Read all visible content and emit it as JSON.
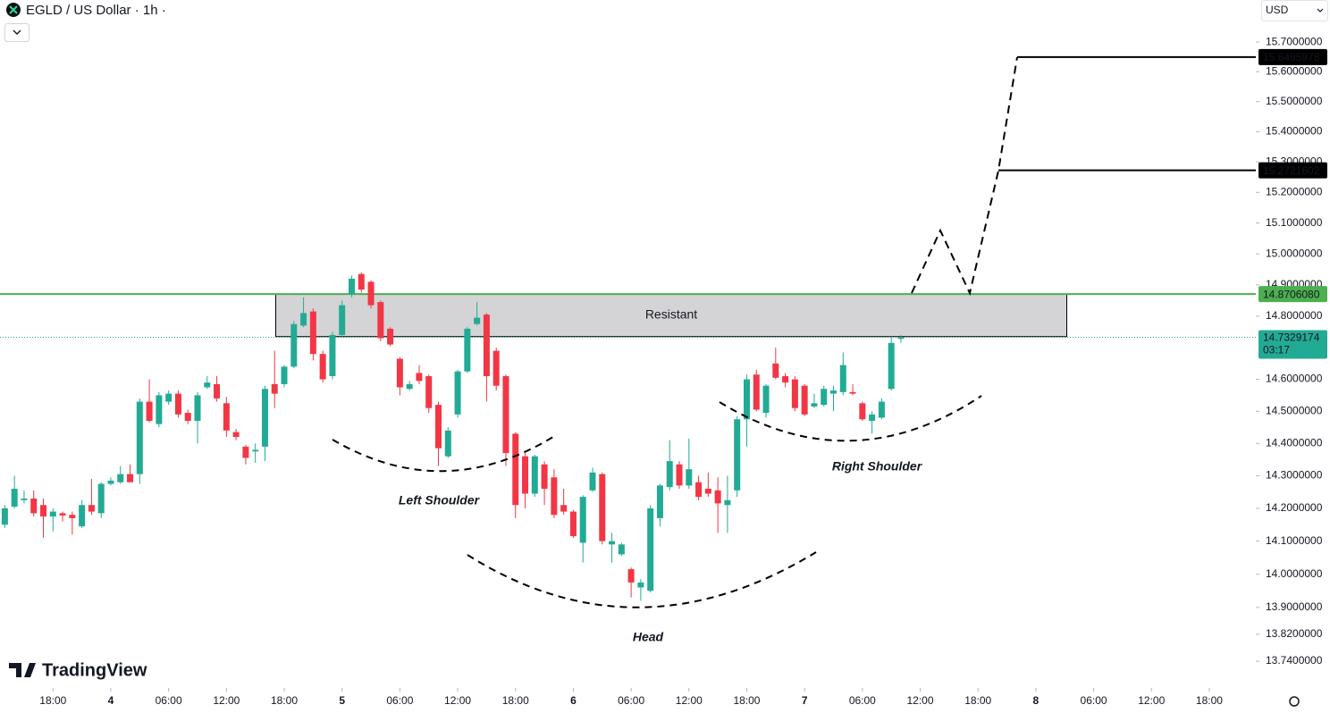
{
  "header": {
    "symbol": "EGLD / US Dollar · 1h ·",
    "currency": "USD",
    "watermark": "TradingView"
  },
  "chart_data": {
    "type": "candlestick",
    "log_scale": true,
    "up_color": "#22ab94",
    "down_color": "#f23645",
    "open": [
      14.15,
      14.205,
      14.225,
      14.23,
      14.21,
      14.175,
      14.185,
      14.18,
      14.145,
      14.21,
      14.185,
      14.275,
      14.28,
      14.305,
      14.305,
      14.53,
      14.46,
      14.53,
      14.555,
      14.495,
      14.47,
      14.575,
      14.585,
      14.525,
      14.435,
      14.39,
      14.375,
      14.39,
      14.585,
      14.585,
      14.64,
      14.77,
      14.815,
      14.68,
      14.61,
      14.74,
      14.87,
      14.935,
      14.91,
      14.845,
      14.76,
      14.665,
      14.57,
      14.62,
      14.61,
      14.52,
      14.36,
      14.49,
      14.625,
      14.775,
      14.805,
      14.69,
      14.61,
      14.43,
      14.36,
      14.245,
      14.335,
      14.295,
      14.21,
      14.19,
      14.095,
      14.255,
      14.305,
      14.09,
      14.06,
      14.015,
      13.96,
      13.95,
      14.17,
      14.265,
      14.335,
      14.27,
      14.28,
      14.26,
      14.255,
      14.21,
      14.255,
      14.475,
      14.615,
      14.495,
      14.65,
      14.61,
      14.6,
      14.58,
      14.515,
      14.52,
      14.555,
      14.56,
      14.56,
      14.525,
      14.47,
      14.48,
      14.57,
      14.728
    ],
    "high": [
      14.21,
      14.3,
      14.255,
      14.255,
      14.23,
      14.2,
      14.19,
      14.19,
      14.225,
      14.29,
      14.28,
      14.295,
      14.33,
      14.335,
      14.54,
      14.6,
      14.56,
      14.565,
      14.565,
      14.505,
      14.56,
      14.61,
      14.61,
      14.545,
      14.445,
      14.395,
      14.4,
      14.58,
      14.69,
      14.645,
      14.785,
      14.86,
      14.825,
      14.69,
      14.75,
      14.85,
      14.93,
      14.94,
      14.915,
      14.85,
      14.765,
      14.67,
      14.595,
      14.645,
      14.615,
      14.53,
      14.45,
      14.63,
      14.765,
      14.845,
      14.81,
      14.7,
      14.615,
      14.435,
      14.37,
      14.365,
      14.345,
      14.32,
      14.26,
      14.195,
      14.24,
      14.325,
      14.31,
      14.125,
      14.095,
      14.02,
      13.985,
      14.21,
      14.275,
      14.41,
      14.345,
      14.415,
      14.3,
      14.31,
      14.295,
      14.3,
      14.485,
      14.615,
      14.63,
      14.585,
      14.7,
      14.62,
      14.61,
      14.585,
      14.555,
      14.58,
      14.58,
      14.685,
      14.585,
      14.53,
      14.5,
      14.54,
      14.735,
      14.74
    ],
    "low": [
      14.14,
      14.2,
      14.215,
      14.175,
      14.11,
      14.13,
      14.16,
      14.12,
      14.14,
      14.18,
      14.17,
      14.27,
      14.275,
      14.28,
      14.275,
      14.465,
      14.45,
      14.52,
      14.48,
      14.46,
      14.4,
      14.57,
      14.53,
      14.42,
      14.41,
      14.335,
      14.34,
      14.345,
      14.51,
      14.575,
      14.635,
      14.765,
      14.66,
      14.59,
      14.6,
      14.735,
      14.86,
      14.875,
      14.825,
      14.72,
      14.705,
      14.55,
      14.565,
      14.585,
      14.495,
      14.33,
      14.355,
      14.48,
      14.62,
      14.77,
      14.53,
      14.565,
      14.33,
      14.17,
      14.2,
      14.235,
      14.21,
      14.17,
      14.18,
      14.11,
      14.035,
      14.25,
      14.09,
      14.035,
      14.055,
      13.93,
      13.92,
      13.945,
      14.145,
      14.255,
      14.26,
      14.26,
      14.225,
      14.235,
      14.125,
      14.125,
      14.235,
      14.39,
      14.5,
      14.48,
      14.6,
      14.575,
      14.5,
      14.485,
      14.51,
      14.515,
      14.5,
      14.55,
      14.55,
      14.47,
      14.43,
      14.475,
      14.565,
      14.715
    ],
    "close": [
      14.2,
      14.26,
      14.23,
      14.185,
      14.175,
      14.19,
      14.178,
      14.17,
      14.21,
      14.19,
      14.275,
      14.285,
      14.305,
      14.28,
      14.53,
      14.47,
      14.55,
      14.555,
      14.49,
      14.47,
      14.55,
      14.59,
      14.54,
      14.44,
      14.42,
      14.355,
      14.38,
      14.57,
      14.555,
      14.64,
      14.775,
      14.81,
      14.68,
      14.6,
      14.74,
      14.835,
      14.92,
      14.885,
      14.835,
      14.73,
      14.71,
      14.575,
      14.585,
      14.595,
      14.51,
      14.385,
      14.44,
      14.625,
      14.76,
      14.795,
      14.61,
      14.58,
      14.37,
      14.21,
      14.245,
      14.36,
      14.26,
      14.18,
      14.19,
      14.115,
      14.235,
      14.31,
      14.1,
      14.1,
      14.09,
      13.975,
      13.975,
      14.2,
      14.27,
      14.345,
      14.27,
      14.32,
      14.235,
      14.245,
      14.215,
      14.225,
      14.475,
      14.6,
      14.505,
      14.58,
      14.605,
      14.59,
      14.51,
      14.49,
      14.525,
      14.57,
      14.565,
      14.645,
      14.555,
      14.475,
      14.49,
      14.53,
      14.715,
      14.7329174
    ],
    "xlim": [
      -0.5,
      129.83
    ],
    "ylim": [
      13.661,
      15.843
    ],
    "xticks": [
      {
        "value": 5,
        "label": "18:00"
      },
      {
        "value": 11,
        "label": "4"
      },
      {
        "value": 17,
        "label": "06:00"
      },
      {
        "value": 23,
        "label": "12:00"
      },
      {
        "value": 29,
        "label": "18:00"
      },
      {
        "value": 35,
        "label": "5"
      },
      {
        "value": 41,
        "label": "06:00"
      },
      {
        "value": 47,
        "label": "12:00"
      },
      {
        "value": 53,
        "label": "18:00"
      },
      {
        "value": 59,
        "label": "6"
      },
      {
        "value": 65,
        "label": "06:00"
      },
      {
        "value": 71,
        "label": "12:00"
      },
      {
        "value": 77,
        "label": "18:00"
      },
      {
        "value": 83,
        "label": "7"
      },
      {
        "value": 89,
        "label": "06:00"
      },
      {
        "value": 95,
        "label": "12:00"
      },
      {
        "value": 101,
        "label": "18:00"
      },
      {
        "value": 107,
        "label": "8"
      },
      {
        "value": 113,
        "label": "06:00"
      },
      {
        "value": 119,
        "label": "12:00"
      },
      {
        "value": 125,
        "label": "18:00"
      }
    ],
    "yticks": [
      {
        "value": 13.74,
        "label": "13.7400000"
      },
      {
        "value": 13.82,
        "label": "13.8200000"
      },
      {
        "value": 13.9,
        "label": "13.9000000"
      },
      {
        "value": 14.0,
        "label": "14.0000000"
      },
      {
        "value": 14.1,
        "label": "14.1000000"
      },
      {
        "value": 14.2,
        "label": "14.2000000"
      },
      {
        "value": 14.3,
        "label": "14.3000000"
      },
      {
        "value": 14.4,
        "label": "14.4000000"
      },
      {
        "value": 14.5,
        "label": "14.5000000"
      },
      {
        "value": 14.6,
        "label": "14.6000000"
      },
      {
        "value": 14.8,
        "label": "14.8000000"
      },
      {
        "value": 14.9,
        "label": "14.9000000"
      },
      {
        "value": 15.0,
        "label": "15.0000000"
      },
      {
        "value": 15.1,
        "label": "15.1000000"
      },
      {
        "value": 15.2,
        "label": "15.2000000"
      },
      {
        "value": 15.3,
        "label": "15.3000000"
      },
      {
        "value": 15.4,
        "label": "15.4000000"
      },
      {
        "value": 15.5,
        "label": "15.5000000"
      },
      {
        "value": 15.6,
        "label": "15.6000000"
      },
      {
        "value": 15.7,
        "label": "15.7000000"
      }
    ],
    "price_lines": [
      {
        "value": 15.6495978,
        "label": "15.6495978"
      },
      {
        "value": 15.2721602,
        "label": "15.2721602"
      }
    ],
    "support_line": {
      "value": 14.870608,
      "label": "14.8706080",
      "color": "#4caf50"
    },
    "current_price": {
      "value": 14.7329174,
      "label": "14.7329174",
      "countdown": "03:17"
    },
    "resistance_zone": {
      "label": "Resistant",
      "low": 14.735,
      "high": 14.87
    },
    "annotations": [
      "Left Shoulder",
      "Head",
      "Right Shoulder"
    ]
  }
}
